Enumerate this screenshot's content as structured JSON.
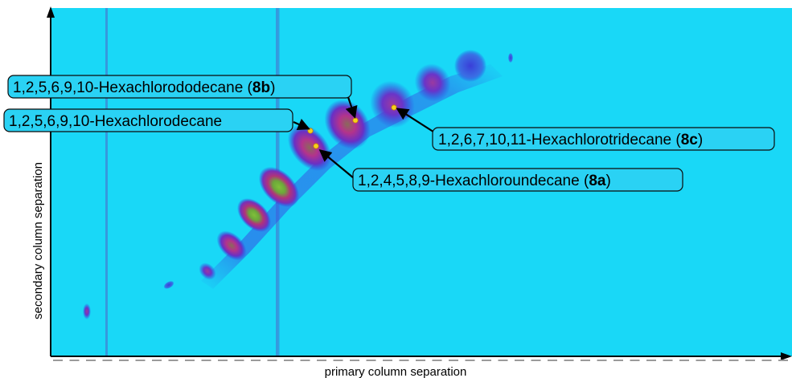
{
  "chart_data": {
    "type": "heatmap",
    "title": "",
    "xlabel": "primary column separation",
    "ylabel": "secondary column separation",
    "grid": false,
    "colors": {
      "background": "#19d8f7",
      "low": "#2f3ae0",
      "mid": "#a8389c",
      "high": "#6ca83a",
      "peak": "#f5d21a",
      "streak": "#3d8ad6"
    },
    "annotations": [
      {
        "id": "8b",
        "prefix": "1,2,5,6,9,10-Hexachlorododecane (",
        "bold": "8b",
        "suffix": ")"
      },
      {
        "id": "hcd",
        "prefix": "1,2,5,6,9,10-Hexachlorodecane",
        "bold": "",
        "suffix": ""
      },
      {
        "id": "8c",
        "prefix": "1,2,6,7,10,11-Hexachlorotridecane (",
        "bold": "8c",
        "suffix": ")"
      },
      {
        "id": "8a",
        "prefix": "1,2,4,5,8,9-Hexachloroundecane (",
        "bold": "8a",
        "suffix": ")"
      }
    ]
  }
}
